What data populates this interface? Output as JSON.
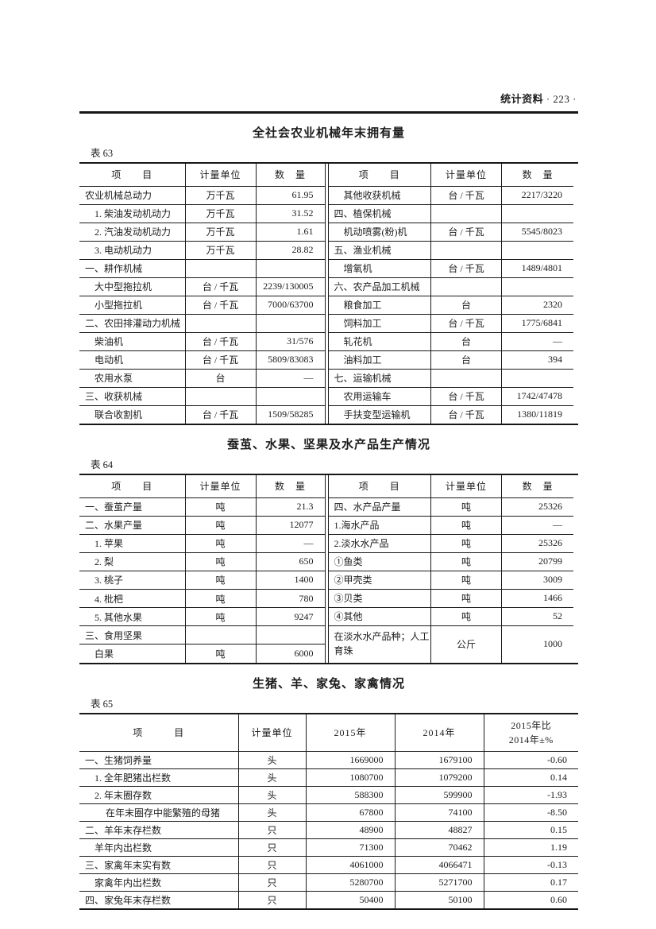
{
  "page_header": {
    "magazine": "统计资料",
    "page_no": "· 223 ·"
  },
  "table63": {
    "title": "全社会农业机械年末拥有量",
    "label": "表 63",
    "columns": {
      "item": "项　　目",
      "unit": "计量单位",
      "qty": "数　量"
    },
    "left_rows": [
      {
        "item": "农业机械总动力",
        "unit": "万千瓦",
        "qty": "61.95",
        "indent": 0
      },
      {
        "item": "1. 柴油发动机动力",
        "unit": "万千瓦",
        "qty": "31.52",
        "indent": 1
      },
      {
        "item": "2. 汽油发动机动力",
        "unit": "万千瓦",
        "qty": "1.61",
        "indent": 1
      },
      {
        "item": "3. 电动机动力",
        "unit": "万千瓦",
        "qty": "28.82",
        "indent": 1
      },
      {
        "item": "一、耕作机械",
        "unit": "",
        "qty": "",
        "indent": 0
      },
      {
        "item": "大中型拖拉机",
        "unit": "台 / 千瓦",
        "qty": "2239/130005",
        "indent": 1
      },
      {
        "item": "小型拖拉机",
        "unit": "台 / 千瓦",
        "qty": "7000/63700",
        "indent": 1
      },
      {
        "item": "二、农田排灌动力机械",
        "unit": "",
        "qty": "",
        "indent": 0
      },
      {
        "item": "柴油机",
        "unit": "台 / 千瓦",
        "qty": "31/576",
        "indent": 1
      },
      {
        "item": "电动机",
        "unit": "台 / 千瓦",
        "qty": "5809/83083",
        "indent": 1
      },
      {
        "item": "农用水泵",
        "unit": "台",
        "qty": "—",
        "indent": 1
      },
      {
        "item": "三、收获机械",
        "unit": "",
        "qty": "",
        "indent": 0
      },
      {
        "item": "联合收割机",
        "unit": "台 / 千瓦",
        "qty": "1509/58285",
        "indent": 1
      }
    ],
    "right_rows": [
      {
        "item": "其他收获机械",
        "unit": "台 / 千瓦",
        "qty": "2217/3220",
        "indent": 1
      },
      {
        "item": "四、植保机械",
        "unit": "",
        "qty": "",
        "indent": 0
      },
      {
        "item": "机动喷雾(粉)机",
        "unit": "台 / 千瓦",
        "qty": "5545/8023",
        "indent": 1
      },
      {
        "item": "五、渔业机械",
        "unit": "",
        "qty": "",
        "indent": 0
      },
      {
        "item": "增氧机",
        "unit": "台 / 千瓦",
        "qty": "1489/4801",
        "indent": 1
      },
      {
        "item": "六、农产品加工机械",
        "unit": "",
        "qty": "",
        "indent": 0
      },
      {
        "item": "粮食加工",
        "unit": "台",
        "qty": "2320",
        "indent": 1
      },
      {
        "item": "饲料加工",
        "unit": "台 / 千瓦",
        "qty": "1775/6841",
        "indent": 1
      },
      {
        "item": "轧花机",
        "unit": "台",
        "qty": "—",
        "indent": 1
      },
      {
        "item": "油料加工",
        "unit": "台",
        "qty": "394",
        "indent": 1
      },
      {
        "item": "七、运输机械",
        "unit": "",
        "qty": "",
        "indent": 0
      },
      {
        "item": "农用运输车",
        "unit": "台 / 千瓦",
        "qty": "1742/47478",
        "indent": 1
      },
      {
        "item": "手扶变型运输机",
        "unit": "台 / 千瓦",
        "qty": "1380/11819",
        "indent": 1
      }
    ]
  },
  "table64": {
    "title": "蚕茧、水果、坚果及水产品生产情况",
    "label": "表 64",
    "columns": {
      "item": "项　　目",
      "unit": "计量单位",
      "qty": "数　量"
    },
    "left_rows": [
      {
        "item": "一、蚕茧产量",
        "unit": "吨",
        "qty": "21.3",
        "indent": 0
      },
      {
        "item": "二、水果产量",
        "unit": "吨",
        "qty": "12077",
        "indent": 0
      },
      {
        "item": "1. 苹果",
        "unit": "吨",
        "qty": "—",
        "indent": 1
      },
      {
        "item": "2. 梨",
        "unit": "吨",
        "qty": "650",
        "indent": 1
      },
      {
        "item": "3. 桃子",
        "unit": "吨",
        "qty": "1400",
        "indent": 1
      },
      {
        "item": "4. 枇杷",
        "unit": "吨",
        "qty": "780",
        "indent": 1
      },
      {
        "item": "5. 其他水果",
        "unit": "吨",
        "qty": "9247",
        "indent": 1
      },
      {
        "item": "三、食用坚果",
        "unit": "",
        "qty": "",
        "indent": 0
      },
      {
        "item": "白果",
        "unit": "吨",
        "qty": "6000",
        "indent": 1
      }
    ],
    "right_rows": [
      {
        "item": "四、水产品产量",
        "unit": "吨",
        "qty": "25326",
        "indent": 0
      },
      {
        "item": "1.海水产品",
        "unit": "吨",
        "qty": "—",
        "indent": 0
      },
      {
        "item": "2.淡水水产品",
        "unit": "吨",
        "qty": "25326",
        "indent": 0
      },
      {
        "item": "①鱼类",
        "unit": "吨",
        "qty": "20799",
        "indent": 0
      },
      {
        "item": "②甲壳类",
        "unit": "吨",
        "qty": "3009",
        "indent": 0
      },
      {
        "item": "③贝类",
        "unit": "吨",
        "qty": "1466",
        "indent": 0
      },
      {
        "item": "④其他",
        "unit": "吨",
        "qty": "52",
        "indent": 0
      },
      {
        "item": "在淡水水产品种；人工育珠",
        "unit": "公斤",
        "qty": "1000",
        "indent": 0,
        "tall": true
      }
    ]
  },
  "table65": {
    "title": "生猪、羊、家兔、家禽情况",
    "label": "表 65",
    "columns": {
      "item": "项　　　目",
      "unit": "计量单位",
      "y2015": "2015年",
      "y2014": "2014年",
      "change_line1": "2015年比",
      "change_line2": "2014年±%"
    },
    "rows": [
      {
        "item": "一、生猪饲养量",
        "unit": "头",
        "y2015": "1669000",
        "y2014": "1679100",
        "change": "-0.60",
        "indent": 0
      },
      {
        "item": "1. 全年肥猪出栏数",
        "unit": "头",
        "y2015": "1080700",
        "y2014": "1079200",
        "change": "0.14",
        "indent": 1
      },
      {
        "item": "2. 年末圈存数",
        "unit": "头",
        "y2015": "588300",
        "y2014": "599900",
        "change": "-1.93",
        "indent": 1
      },
      {
        "item": "在年末圈存中能繁殖的母猪",
        "unit": "头",
        "y2015": "67800",
        "y2014": "74100",
        "change": "-8.50",
        "indent": 2
      },
      {
        "item": "二、羊年末存栏数",
        "unit": "只",
        "y2015": "48900",
        "y2014": "48827",
        "change": "0.15",
        "indent": 0
      },
      {
        "item": "羊年内出栏数",
        "unit": "只",
        "y2015": "71300",
        "y2014": "70462",
        "change": "1.19",
        "indent": 1
      },
      {
        "item": "三、家禽年末实有数",
        "unit": "只",
        "y2015": "4061000",
        "y2014": "4066471",
        "change": "-0.13",
        "indent": 0
      },
      {
        "item": "家禽年内出栏数",
        "unit": "只",
        "y2015": "5280700",
        "y2014": "5271700",
        "change": "0.17",
        "indent": 1
      },
      {
        "item": "四、家兔年末存栏数",
        "unit": "只",
        "y2015": "50400",
        "y2014": "50100",
        "change": "0.60",
        "indent": 0
      }
    ]
  }
}
